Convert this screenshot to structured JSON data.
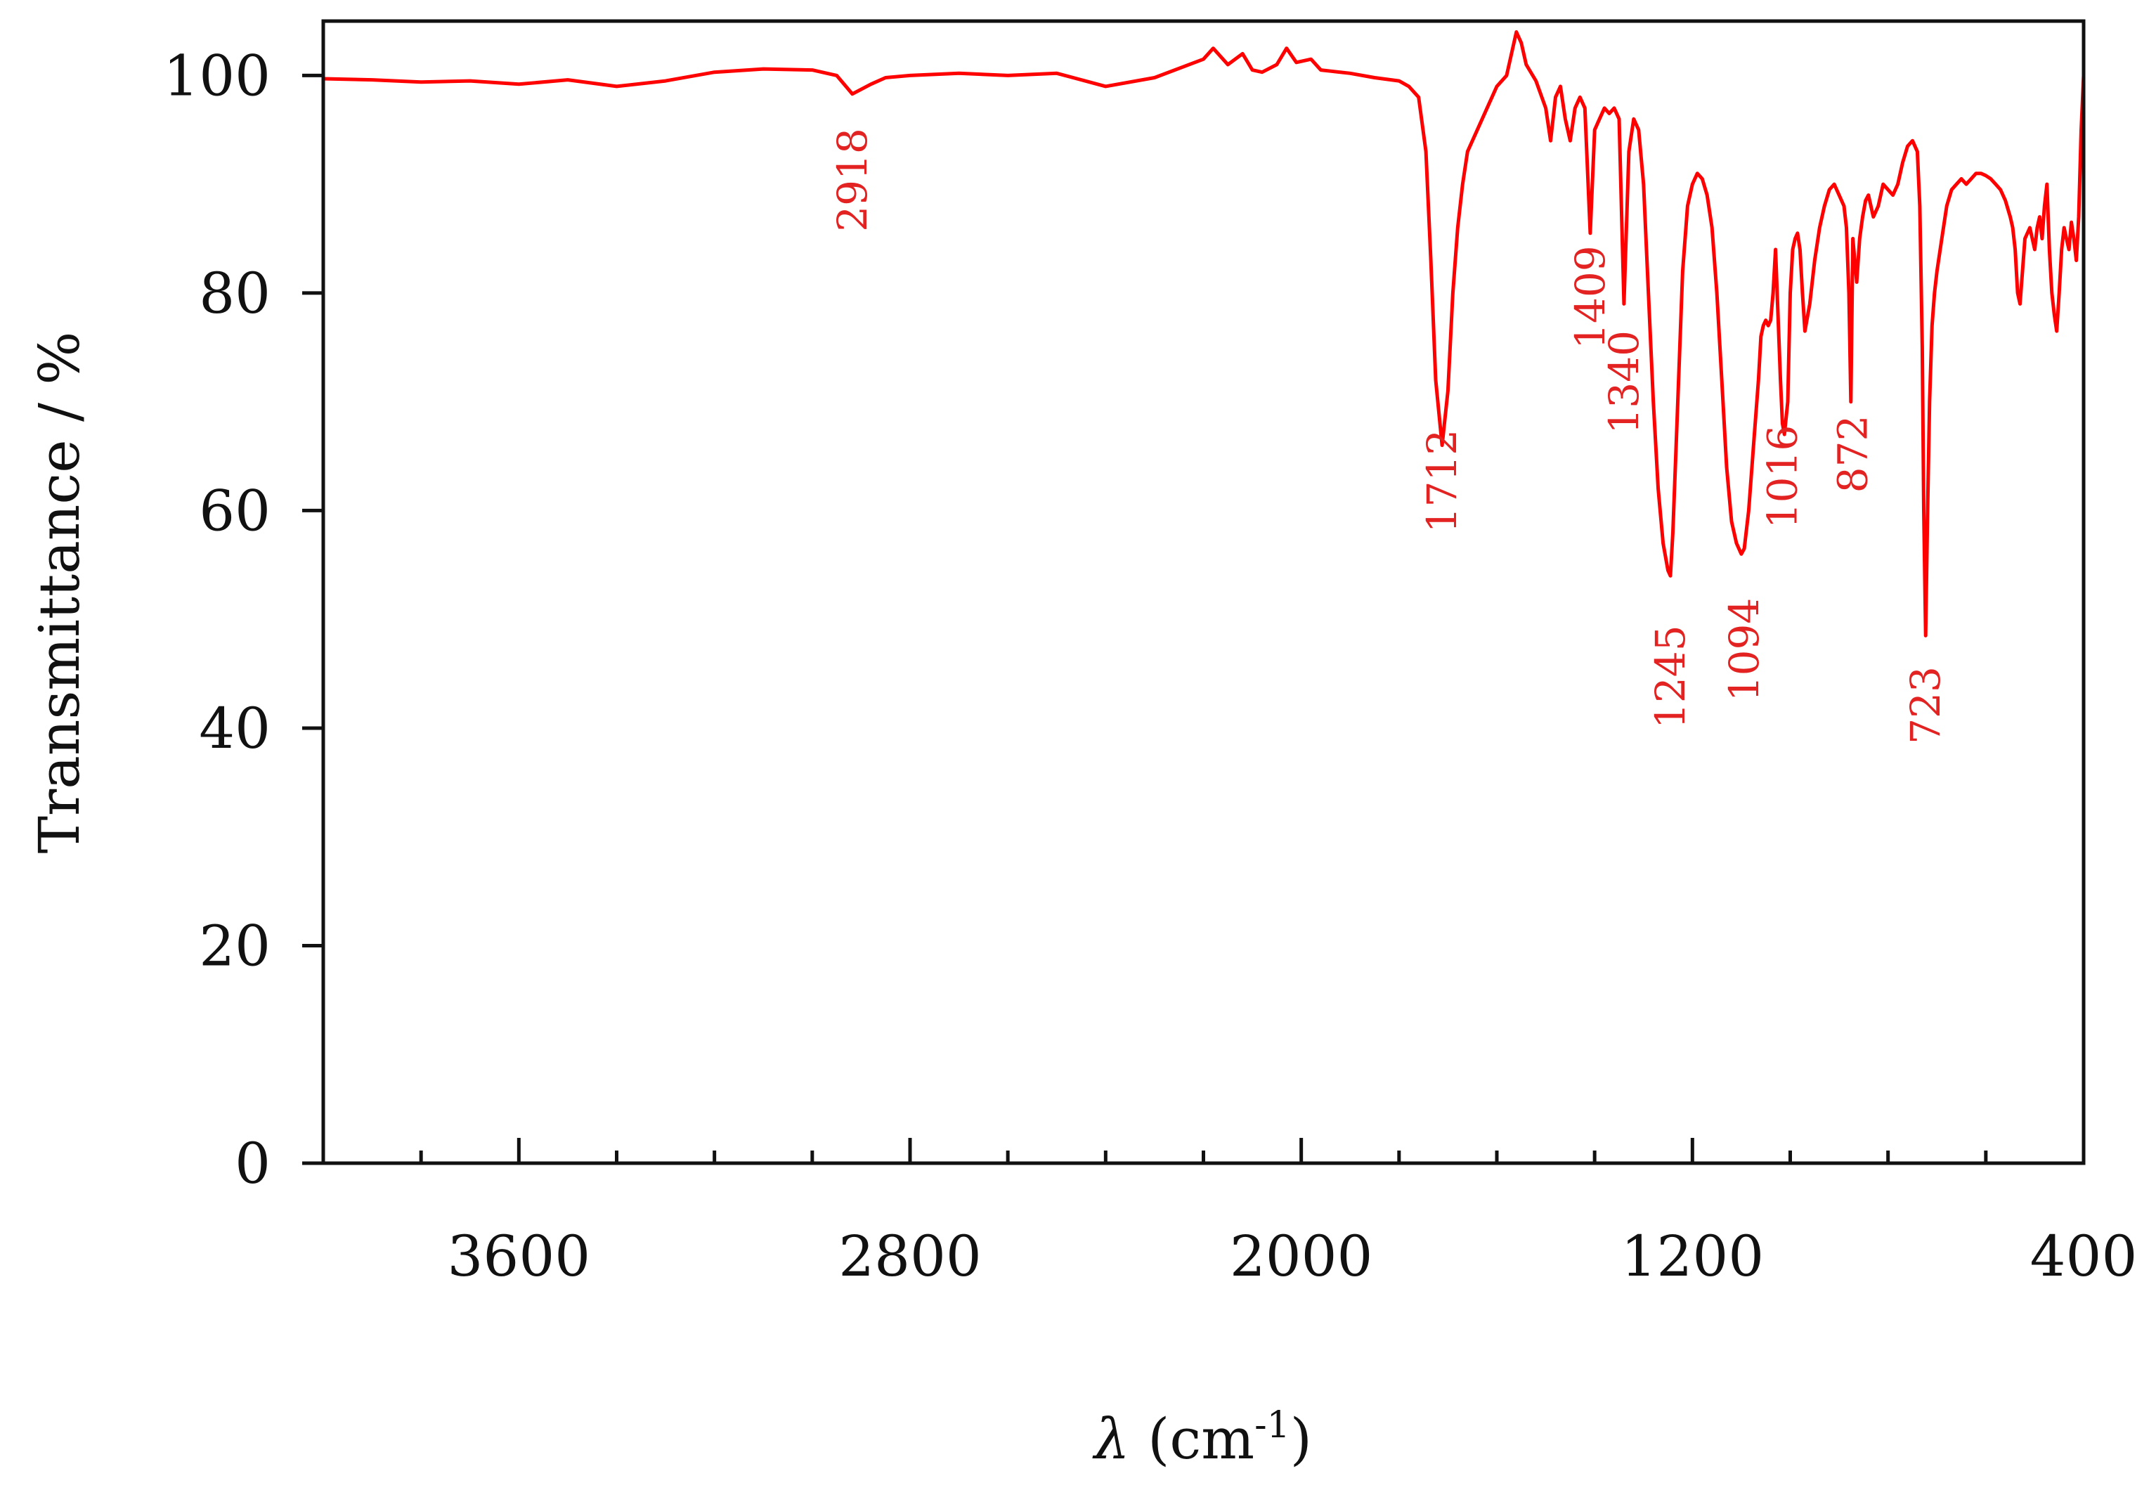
{
  "chart_data": {
    "type": "line",
    "xlabel": "λ (cm-1)",
    "xlabel_parts": {
      "symbol": "λ",
      "open": " (cm",
      "sup": "-1",
      "close": ")"
    },
    "ylabel": "Transmittance  / %",
    "xlim": [
      4000,
      400
    ],
    "x_reversed": true,
    "ylim": [
      0,
      105
    ],
    "x_ticks_major": [
      3600,
      2800,
      2000,
      1200,
      400
    ],
    "x_ticks_minor": [
      3800,
      3400,
      3200,
      3000,
      2600,
      2400,
      2200,
      1800,
      1600,
      1400,
      1000,
      800,
      600
    ],
    "y_ticks": [
      0,
      20,
      40,
      60,
      80,
      100
    ],
    "grid": false,
    "line_color": "#ff0000",
    "label_color": "#e32222",
    "series": [
      {
        "x": [
          4000,
          3900,
          3800,
          3700,
          3600,
          3500,
          3400,
          3300,
          3200,
          3100,
          3000,
          2950,
          2918,
          2880,
          2850,
          2800,
          2700,
          2600,
          2500,
          2400,
          2300,
          2200,
          2180,
          2150,
          2120,
          2100,
          2080,
          2050,
          2030,
          2010,
          1980,
          1960,
          1940,
          1900,
          1850,
          1800,
          1780,
          1760,
          1745,
          1735,
          1725,
          1712,
          1700,
          1690,
          1680,
          1670,
          1660,
          1640,
          1620,
          1600,
          1580,
          1560,
          1550,
          1540,
          1520,
          1500,
          1490,
          1480,
          1470,
          1460,
          1450,
          1440,
          1430,
          1420,
          1409,
          1400,
          1390,
          1380,
          1370,
          1360,
          1350,
          1340,
          1330,
          1320,
          1310,
          1300,
          1290,
          1280,
          1270,
          1260,
          1250,
          1245,
          1240,
          1230,
          1220,
          1210,
          1200,
          1190,
          1180,
          1170,
          1160,
          1150,
          1140,
          1130,
          1120,
          1110,
          1100,
          1094,
          1085,
          1075,
          1065,
          1060,
          1055,
          1050,
          1045,
          1040,
          1035,
          1030,
          1025,
          1020,
          1016,
          1012,
          1005,
          1000,
          995,
          990,
          985,
          980,
          975,
          970,
          960,
          950,
          940,
          930,
          920,
          910,
          900,
          890,
          885,
          880,
          876,
          872,
          868,
          864,
          858,
          852,
          846,
          840,
          830,
          820,
          810,
          800,
          790,
          780,
          770,
          760,
          750,
          740,
          735,
          730,
          727,
          723,
          719,
          715,
          710,
          705,
          700,
          690,
          680,
          670,
          660,
          650,
          640,
          630,
          620,
          610,
          600,
          590,
          580,
          570,
          560,
          550,
          545,
          540,
          535,
          530,
          520,
          510,
          500,
          495,
          490,
          485,
          480,
          475,
          470,
          465,
          460,
          455,
          450,
          445,
          440,
          435,
          430,
          425,
          420,
          415,
          410,
          405,
          400
        ],
        "y": [
          99.7,
          99.6,
          99.4,
          99.5,
          99.2,
          99.6,
          99.0,
          99.5,
          100.3,
          100.6,
          100.5,
          100.0,
          98.3,
          99.2,
          99.8,
          100.0,
          100.2,
          100.0,
          100.2,
          99.0,
          99.8,
          101.5,
          102.5,
          101.0,
          102.0,
          100.5,
          100.3,
          101.0,
          102.5,
          101.2,
          101.5,
          100.5,
          100.4,
          100.2,
          99.8,
          99.5,
          99.0,
          98.0,
          93.0,
          83.0,
          72.0,
          66.0,
          71.0,
          80.0,
          86.0,
          90.0,
          93.0,
          95.0,
          97.0,
          99.0,
          100.0,
          104.0,
          103.0,
          101.0,
          99.5,
          97.0,
          94.0,
          98.0,
          99.0,
          96.0,
          94.0,
          97.0,
          98.0,
          97.0,
          85.5,
          95.0,
          96.0,
          97.0,
          96.5,
          97.0,
          96.0,
          79.0,
          93.0,
          96.0,
          95.0,
          90.0,
          80.0,
          70.0,
          62.0,
          57.0,
          54.5,
          54.0,
          58.0,
          70.0,
          82.0,
          88.0,
          90.0,
          91.0,
          90.5,
          89.0,
          86.0,
          80.0,
          72.0,
          64.0,
          59.0,
          57.0,
          56.0,
          56.5,
          60.0,
          66.0,
          72.0,
          76.0,
          77.0,
          77.5,
          77.0,
          77.5,
          80.0,
          84.0,
          78.0,
          72.0,
          68.0,
          67.0,
          70.0,
          80.0,
          84.0,
          85.0,
          85.5,
          84.0,
          80.0,
          76.5,
          79.0,
          83.0,
          86.0,
          88.0,
          89.5,
          90.0,
          89.0,
          88.0,
          86.0,
          80.0,
          70.0,
          85.0,
          83.0,
          81.0,
          85.0,
          87.0,
          88.5,
          89.0,
          87.0,
          88.0,
          90.0,
          89.5,
          89.0,
          90.0,
          92.0,
          93.5,
          94.0,
          93.0,
          88.0,
          75.0,
          60.0,
          48.5,
          60.0,
          70.0,
          77.0,
          80.0,
          82.0,
          85.0,
          88.0,
          89.5,
          90.0,
          90.5,
          90.0,
          90.5,
          91.0,
          91.0,
          90.8,
          90.5,
          90.0,
          89.5,
          88.5,
          87.0,
          86.0,
          84.0,
          80.0,
          79.0,
          85.0,
          86.0,
          84.0,
          86.0,
          87.0,
          85.0,
          88.0,
          90.0,
          84.0,
          80.0,
          78.0,
          76.5,
          80.0,
          84.0,
          86.0,
          85.0,
          84.0,
          86.5,
          85.0,
          83.0,
          87.0,
          95.0,
          100.0
        ]
      }
    ],
    "annotations": [
      {
        "text": "2918",
        "x": 2918,
        "y": 90.4
      },
      {
        "text": "1712",
        "x": 1712,
        "y": 62.7
      },
      {
        "text": "1409",
        "x": 1409,
        "y": 79.6
      },
      {
        "text": "1340",
        "x": 1340,
        "y": 71.8
      },
      {
        "text": "1245",
        "x": 1245,
        "y": 44.7
      },
      {
        "text": "1094",
        "x": 1094,
        "y": 47.2
      },
      {
        "text": "1016",
        "x": 1016,
        "y": 63.1
      },
      {
        "text": "872",
        "x": 872,
        "y": 65.2
      },
      {
        "text": "723",
        "x": 723,
        "y": 42.1
      }
    ]
  }
}
